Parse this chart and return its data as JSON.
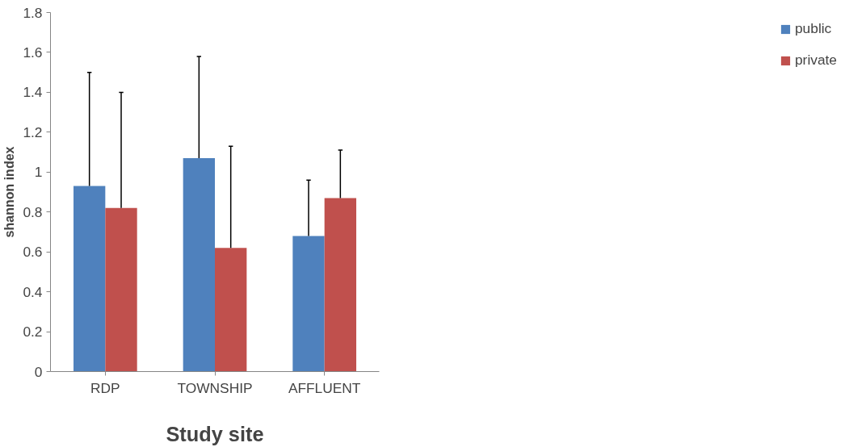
{
  "chart_data": {
    "type": "bar",
    "xlabel": "Study site",
    "ylabel": "shannon index",
    "categories": [
      "RDP",
      "TOWNSHIP",
      "AFFLUENT"
    ],
    "series": [
      {
        "name": "public",
        "color": "#4f81bd",
        "values": [
          0.93,
          1.07,
          0.68
        ],
        "errors": [
          [
            0.93,
            1.5
          ],
          [
            1.07,
            1.58
          ],
          [
            0.68,
            0.96
          ]
        ]
      },
      {
        "name": "private",
        "color": "#c0504d",
        "values": [
          0.82,
          0.62,
          0.87
        ],
        "errors": [
          [
            0.82,
            1.4
          ],
          [
            0.62,
            1.13
          ],
          [
            0.87,
            1.11
          ]
        ]
      }
    ],
    "ylim": [
      0,
      1.8
    ],
    "yticks": [
      0,
      0.2,
      0.4,
      0.6,
      0.8,
      1,
      1.2,
      1.4,
      1.6,
      1.8
    ],
    "grid": false,
    "legend": "right"
  }
}
